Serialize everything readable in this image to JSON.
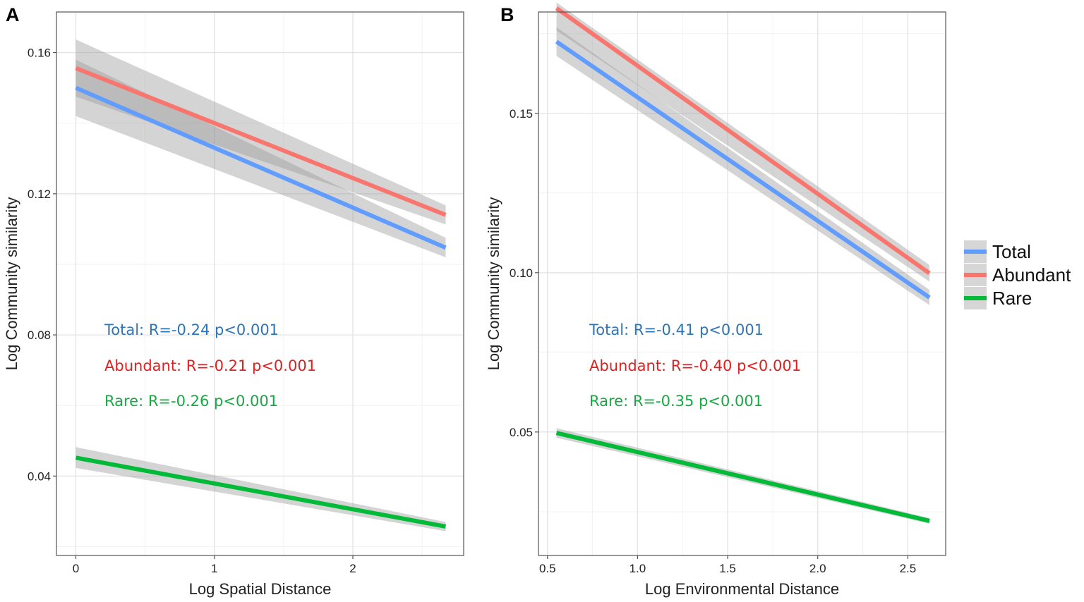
{
  "legend": {
    "items": [
      {
        "label": "Total",
        "color": "#619cff"
      },
      {
        "label": "Abundant",
        "color": "#f8766d"
      },
      {
        "label": "Rare",
        "color": "#00ba38"
      }
    ]
  },
  "chart_data": [
    {
      "panel": "A",
      "type": "line",
      "xlabel": "Log Spatial Distance",
      "ylabel": "Log Community similarity",
      "xlim": [
        -0.14,
        2.8
      ],
      "ylim": [
        0.0175,
        0.1715
      ],
      "x_ticks": [
        0,
        1,
        2
      ],
      "x_tick_labels": [
        "0",
        "1",
        "2"
      ],
      "y_ticks": [
        0.04,
        0.08,
        0.12,
        0.16
      ],
      "y_tick_labels": [
        "0.04",
        "0.08",
        "0.12",
        "0.16"
      ],
      "series": [
        {
          "name": "Total",
          "color": "#619cff",
          "x": [
            0,
            2.67
          ],
          "y": [
            0.15,
            0.1047
          ],
          "band": [
            [
              0.142,
              0.158
            ],
            [
              0.102,
              0.1075
            ]
          ]
        },
        {
          "name": "Abundant",
          "color": "#f8766d",
          "x": [
            0,
            2.67
          ],
          "y": [
            0.1556,
            0.114
          ],
          "band": [
            [
              0.1475,
              0.1637
            ],
            [
              0.1113,
              0.1167
            ]
          ]
        },
        {
          "name": "Rare",
          "color": "#00ba38",
          "x": [
            0,
            2.67
          ],
          "y": [
            0.0452,
            0.0257
          ],
          "band": [
            [
              0.0423,
              0.0482
            ],
            [
              0.0244,
              0.027
            ]
          ]
        }
      ],
      "annotations": [
        {
          "text": "Total: R=-0.24 p<0.001",
          "color": "#2e75b6"
        },
        {
          "text": "Abundant: R=-0.21 p<0.001",
          "color": "#e02020"
        },
        {
          "text": "Rare: R=-0.26 p<0.001",
          "color": "#1aa845"
        }
      ]
    },
    {
      "panel": "B",
      "type": "line",
      "xlabel": "Log Environmental Distance",
      "ylabel": "Log Community similarity",
      "xlim": [
        0.45,
        2.71
      ],
      "ylim": [
        0.01125,
        0.1818
      ],
      "x_ticks": [
        0.5,
        1.0,
        1.5,
        2.0,
        2.5
      ],
      "x_tick_labels": [
        "0.5",
        "1.0",
        "1.5",
        "2.0",
        "2.5"
      ],
      "y_ticks": [
        0.05,
        0.1,
        0.15
      ],
      "y_tick_labels": [
        "0.05",
        "0.10",
        "0.15"
      ],
      "series": [
        {
          "name": "Total",
          "color": "#619cff",
          "x": [
            0.55,
            2.62
          ],
          "y": [
            0.1725,
            0.0922
          ],
          "band": [
            [
              0.168,
              0.177
            ],
            [
              0.0898,
              0.0946
            ]
          ]
        },
        {
          "name": "Abundant",
          "color": "#f8766d",
          "x": [
            0.55,
            2.62
          ],
          "y": [
            0.183,
            0.0998
          ],
          "band": [
            [
              0.176,
              0.1848
            ],
            [
              0.0972,
              0.1024
            ]
          ]
        },
        {
          "name": "Rare",
          "color": "#00ba38",
          "x": [
            0.55,
            2.62
          ],
          "y": [
            0.0497,
            0.0221
          ],
          "band": [
            [
              0.0482,
              0.0512
            ],
            [
              0.0212,
              0.023
            ]
          ]
        }
      ],
      "annotations": [
        {
          "text": "Total: R=-0.41 p<0.001",
          "color": "#2e75b6"
        },
        {
          "text": "Abundant: R=-0.40 p<0.001",
          "color": "#e02020"
        },
        {
          "text": "Rare: R=-0.35 p<0.001",
          "color": "#1aa845"
        }
      ]
    }
  ]
}
